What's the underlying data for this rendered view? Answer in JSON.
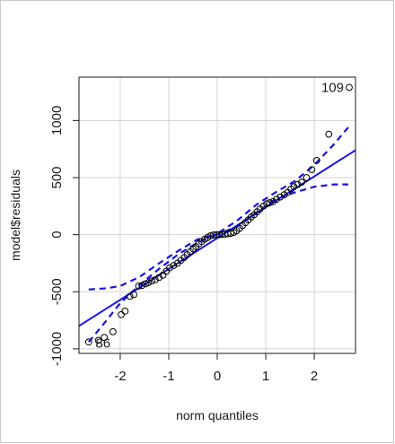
{
  "chart_data": {
    "type": "scatter",
    "title": "",
    "xlabel": "norm quantiles",
    "ylabel": "model$residuals",
    "xlim": [
      -2.85,
      2.85
    ],
    "ylim": [
      -1040,
      1380
    ],
    "x_ticks": [
      -2,
      -1,
      0,
      1,
      2
    ],
    "x_tick_labels": [
      "-2",
      "-1",
      "0",
      "1",
      "2"
    ],
    "y_ticks": [
      -1000,
      -500,
      0,
      500,
      1000
    ],
    "y_tick_labels": [
      "-1000",
      "-500",
      "0",
      "500",
      "1000"
    ],
    "grid": true,
    "colors": {
      "fit_line": "#1414e6",
      "envelope": "#1414e6",
      "points": "#000000",
      "grid": "#d3d3d3"
    },
    "points": [
      [
        -2.65,
        -940
      ],
      [
        -2.45,
        -925
      ],
      [
        -2.33,
        -900
      ],
      [
        -2.15,
        -850
      ],
      [
        -1.98,
        -700
      ],
      [
        -1.9,
        -670
      ],
      [
        -1.8,
        -540
      ],
      [
        -1.72,
        -525
      ],
      [
        -1.62,
        -450
      ],
      [
        -1.55,
        -445
      ],
      [
        -1.48,
        -430
      ],
      [
        -1.42,
        -420
      ],
      [
        -1.35,
        -405
      ],
      [
        -1.28,
        -395
      ],
      [
        -1.2,
        -375
      ],
      [
        -1.12,
        -355
      ],
      [
        -1.05,
        -320
      ],
      [
        -0.98,
        -290
      ],
      [
        -0.9,
        -270
      ],
      [
        -0.82,
        -250
      ],
      [
        -0.75,
        -225
      ],
      [
        -0.68,
        -200
      ],
      [
        -0.62,
        -175
      ],
      [
        -0.56,
        -150
      ],
      [
        -0.5,
        -125
      ],
      [
        -0.44,
        -105
      ],
      [
        -0.38,
        -80
      ],
      [
        -0.32,
        -60
      ],
      [
        -0.26,
        -40
      ],
      [
        -0.2,
        -25
      ],
      [
        -0.14,
        -10
      ],
      [
        -0.08,
        -3
      ],
      [
        -0.02,
        0
      ],
      [
        0.04,
        0
      ],
      [
        0.1,
        2
      ],
      [
        0.16,
        5
      ],
      [
        0.22,
        8
      ],
      [
        0.28,
        12
      ],
      [
        0.34,
        20
      ],
      [
        0.4,
        35
      ],
      [
        0.46,
        55
      ],
      [
        0.52,
        80
      ],
      [
        0.58,
        105
      ],
      [
        0.64,
        130
      ],
      [
        0.7,
        155
      ],
      [
        0.76,
        175
      ],
      [
        0.82,
        200
      ],
      [
        0.88,
        225
      ],
      [
        0.95,
        250
      ],
      [
        1.02,
        270
      ],
      [
        1.08,
        280
      ],
      [
        1.15,
        290
      ],
      [
        1.22,
        310
      ],
      [
        1.3,
        330
      ],
      [
        1.38,
        350
      ],
      [
        1.45,
        370
      ],
      [
        1.52,
        400
      ],
      [
        1.58,
        420
      ],
      [
        1.66,
        440
      ],
      [
        1.74,
        460
      ],
      [
        1.84,
        500
      ],
      [
        1.95,
        570
      ],
      [
        2.05,
        650
      ],
      [
        2.3,
        880
      ],
      [
        2.72,
        1290
      ]
    ],
    "labeled_points": [
      {
        "label": "109",
        "x": 2.72,
        "y": 1290
      },
      {
        "label": "86",
        "x": -2.62,
        "y": -950
      }
    ],
    "fit_line": {
      "x": [
        -2.85,
        2.85
      ],
      "y": [
        -800,
        740
      ]
    },
    "envelope_upper": {
      "x": [
        -2.65,
        -2.3,
        -2.0,
        -1.6,
        -1.2,
        -0.8,
        -0.4,
        0.0,
        0.4,
        0.8,
        1.2,
        1.6,
        2.0,
        2.4,
        2.7
      ],
      "y": [
        -940,
        -760,
        -600,
        -440,
        -300,
        -170,
        -70,
        10,
        120,
        260,
        370,
        470,
        610,
        790,
        940
      ]
    },
    "envelope_lower": {
      "x": [
        -2.65,
        -2.3,
        -2.0,
        -1.6,
        -1.2,
        -0.8,
        -0.4,
        0.0,
        0.4,
        0.8,
        1.2,
        1.6,
        2.0,
        2.4,
        2.7
      ],
      "y": [
        -480,
        -470,
        -450,
        -370,
        -250,
        -140,
        -40,
        0,
        70,
        190,
        310,
        370,
        420,
        440,
        440
      ]
    }
  }
}
